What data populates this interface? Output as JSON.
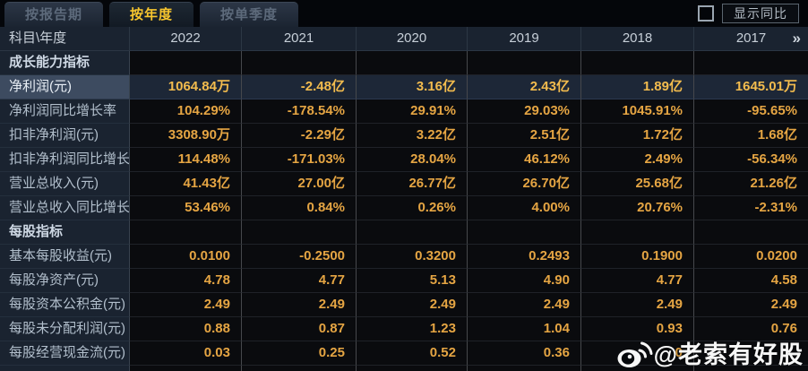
{
  "tabs": [
    {
      "label": "按报告期",
      "active": false
    },
    {
      "label": "按年度",
      "active": true
    },
    {
      "label": "按单季度",
      "active": false
    }
  ],
  "controls": {
    "show_yoy_label": "显示同比",
    "checkbox_checked": false
  },
  "table": {
    "corner_label": "科目\\年度",
    "years": [
      "2022",
      "2021",
      "2020",
      "2019",
      "2018",
      "2017"
    ],
    "more_icon": "»",
    "rows": [
      {
        "type": "section",
        "label": "成长能力指标",
        "values": [
          "",
          "",
          "",
          "",
          "",
          ""
        ]
      },
      {
        "type": "highlight",
        "label": "净利润(元)",
        "values": [
          "1064.84万",
          "-2.48亿",
          "3.16亿",
          "2.43亿",
          "1.89亿",
          "1645.01万"
        ]
      },
      {
        "type": "data",
        "label": "净利润同比增长率",
        "values": [
          "104.29%",
          "-178.54%",
          "29.91%",
          "29.03%",
          "1045.91%",
          "-95.65%"
        ]
      },
      {
        "type": "data",
        "label": "扣非净利润(元)",
        "values": [
          "3308.90万",
          "-2.29亿",
          "3.22亿",
          "2.51亿",
          "1.72亿",
          "1.68亿"
        ]
      },
      {
        "type": "data",
        "label": "扣非净利润同比增长率",
        "values": [
          "114.48%",
          "-171.03%",
          "28.04%",
          "46.12%",
          "2.49%",
          "-56.34%"
        ]
      },
      {
        "type": "data",
        "label": "营业总收入(元)",
        "values": [
          "41.43亿",
          "27.00亿",
          "26.77亿",
          "26.70亿",
          "25.68亿",
          "21.26亿"
        ]
      },
      {
        "type": "data",
        "label": "营业总收入同比增长率",
        "values": [
          "53.46%",
          "0.84%",
          "0.26%",
          "4.00%",
          "20.76%",
          "-2.31%"
        ]
      },
      {
        "type": "section",
        "label": "每股指标",
        "values": [
          "",
          "",
          "",
          "",
          "",
          ""
        ]
      },
      {
        "type": "data",
        "label": "基本每股收益(元)",
        "values": [
          "0.0100",
          "-0.2500",
          "0.3200",
          "0.2493",
          "0.1900",
          "0.0200"
        ]
      },
      {
        "type": "data",
        "label": "每股净资产(元)",
        "values": [
          "4.78",
          "4.77",
          "5.13",
          "4.90",
          "4.77",
          "4.58"
        ]
      },
      {
        "type": "data",
        "label": "每股资本公积金(元)",
        "values": [
          "2.49",
          "2.49",
          "2.49",
          "2.49",
          "2.49",
          "2.49"
        ]
      },
      {
        "type": "data",
        "label": "每股未分配利润(元)",
        "values": [
          "0.88",
          "0.87",
          "1.23",
          "1.04",
          "0.93",
          "0.76"
        ]
      },
      {
        "type": "data",
        "label": "每股经营现金流(元)",
        "values": [
          "0.03",
          "0.25",
          "0.52",
          "0.36",
          "0",
          ""
        ]
      }
    ]
  },
  "watermark": {
    "text": "@老索有好股",
    "icon": "weibo-icon"
  },
  "colors": {
    "value_gold": "#e5a543",
    "highlight_gold": "#f3bc4e",
    "tab_active_text": "#f8c62e",
    "label_bg": "#1a2330",
    "highlight_label_bg": "#3d4b60",
    "highlight_cell_bg": "#1d2737",
    "data_cell_bg": "#0a0b0e"
  }
}
